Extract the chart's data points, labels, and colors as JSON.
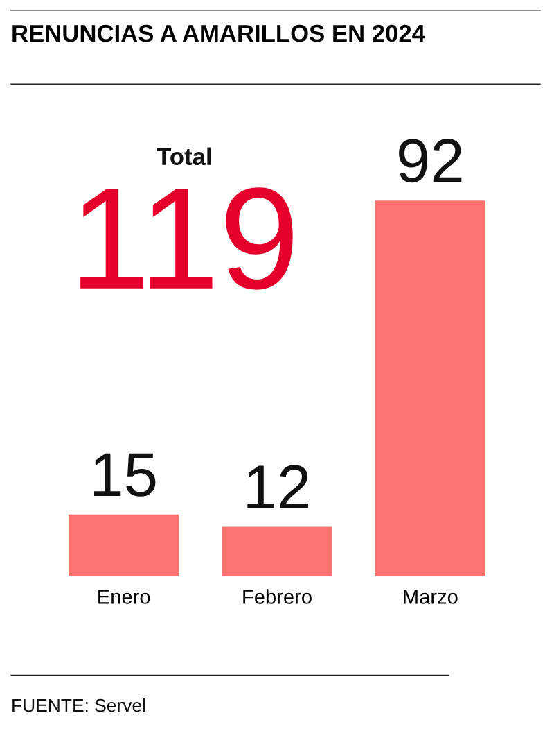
{
  "chart_data": {
    "type": "bar",
    "title": "RENUNCIAS A AMARILLOS EN 2024",
    "categories": [
      "Enero",
      "Febrero",
      "Marzo"
    ],
    "values": [
      15,
      12,
      92
    ],
    "color": "#f8766f",
    "data_labels": true,
    "tick_labels": "x",
    "annotations": [
      "Total",
      "119",
      "FUENTE: Servel"
    ]
  }
}
